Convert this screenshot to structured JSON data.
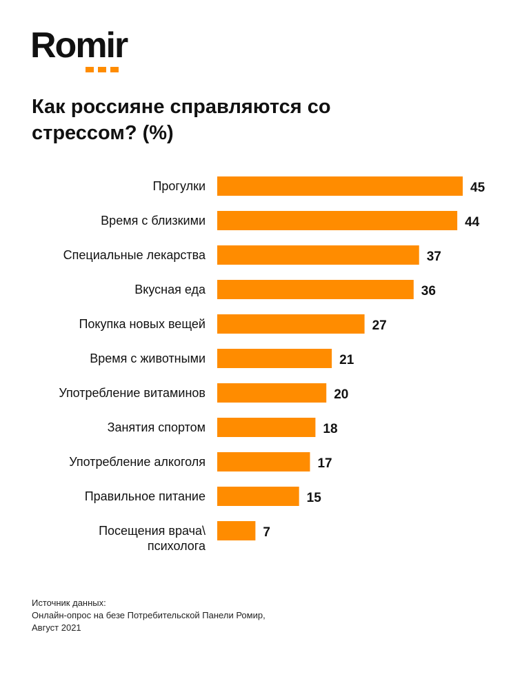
{
  "brand": {
    "name": "Romir",
    "accent_color": "#FF8C00"
  },
  "chart_data": {
    "type": "bar",
    "orientation": "horizontal",
    "title": "Как россияне справляются со стрессом? (%)",
    "categories": [
      "Прогулки",
      "Время с близкими",
      "Специальные лекарства",
      "Вкусная еда",
      "Покупка новых вещей",
      "Время с животными",
      "Употребление витаминов",
      "Занятия спортом",
      "Употребление алкоголя",
      "Правильное питание",
      "Посещения врача\\ психолога"
    ],
    "values": [
      45,
      44,
      37,
      36,
      27,
      21,
      20,
      18,
      17,
      15,
      7
    ],
    "xlim": [
      0,
      45
    ],
    "grid": false,
    "legend": "none",
    "bar_color": "#FF8C00"
  },
  "footnote": {
    "line1": "Источник данных:",
    "line2": "Онлайн-опрос на безе Потребительской Панели Ромир,",
    "line3": "Август 2021"
  }
}
